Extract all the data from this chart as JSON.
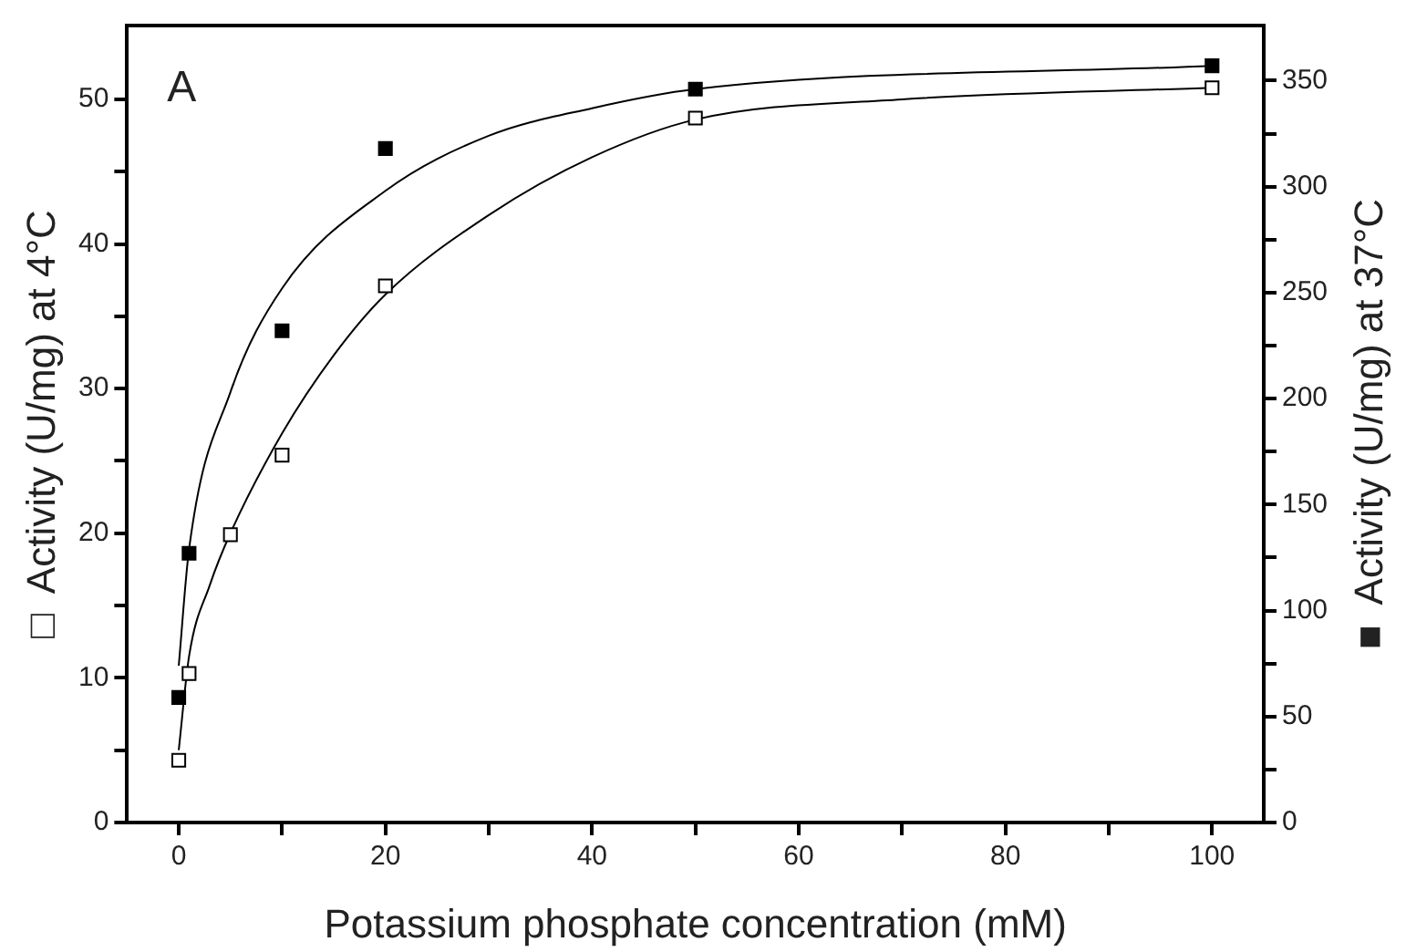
{
  "chart_data": {
    "type": "scatter",
    "xlabel": "Potassium phosphate concentration (mM)",
    "ylabel": "□  Activity (U/mg) at 4°C",
    "y2label": "■  Activity (U/mg) at 37°C",
    "annotations": [
      "A"
    ],
    "marker": "square",
    "grid": false,
    "legend": false,
    "xlim": [
      -5,
      105
    ],
    "xticks": [
      0,
      {
        "value": 10,
        "label": null
      },
      20,
      {
        "value": 30,
        "label": null
      },
      40,
      {
        "value": 50,
        "label": null
      },
      60,
      {
        "value": 70,
        "label": null
      },
      80,
      {
        "value": 90,
        "label": null
      },
      100
    ],
    "ylim": [
      0,
      55.1
    ],
    "yticks": [
      0,
      {
        "value": 5,
        "label": null
      },
      10,
      {
        "value": 15,
        "label": null
      },
      20,
      {
        "value": 25,
        "label": null
      },
      30,
      {
        "value": 35,
        "label": null
      },
      40,
      {
        "value": 45,
        "label": null
      },
      50
    ],
    "y2lim": [
      0,
      376
    ],
    "y2ticks": [
      0,
      {
        "value": 25,
        "label": null
      },
      50,
      {
        "value": 75,
        "label": null
      },
      100,
      {
        "value": 125,
        "label": null
      },
      150,
      {
        "value": 175,
        "label": null
      },
      200,
      {
        "value": 225,
        "label": null
      },
      250,
      {
        "value": 275,
        "label": null
      },
      300,
      {
        "value": 325,
        "label": null
      },
      350
    ],
    "series": [
      {
        "type": "line",
        "color": "#000000",
        "marker": "none",
        "x": [
          0,
          1,
          3,
          5,
          10,
          15,
          20,
          30,
          40,
          50,
          70,
          100
        ],
        "values": [
          5,
          11.5,
          16.4,
          20,
          26.9,
          32.3,
          36.5,
          42,
          46,
          48.6,
          50,
          50.8
        ]
      },
      {
        "type": "line",
        "color": "#000000",
        "marker": "none",
        "axis": "y2",
        "x": [
          0,
          1,
          5,
          10,
          20,
          30,
          40,
          50,
          100
        ],
        "values": [
          74,
          129,
          203,
          252,
          298,
          324,
          337,
          346,
          357
        ]
      },
      {
        "type": "scatter",
        "color": "#ffffff",
        "x": [
          0,
          1,
          5,
          10,
          20,
          50,
          100
        ],
        "values": [
          4.3,
          10.3,
          19.9,
          25.4,
          37.1,
          48.7,
          50.8
        ]
      },
      {
        "type": "scatter",
        "color": "#000000",
        "axis": "y2",
        "x": [
          0,
          1,
          10,
          20,
          50,
          100
        ],
        "values": [
          59,
          127,
          232,
          318,
          346,
          357
        ]
      }
    ]
  }
}
